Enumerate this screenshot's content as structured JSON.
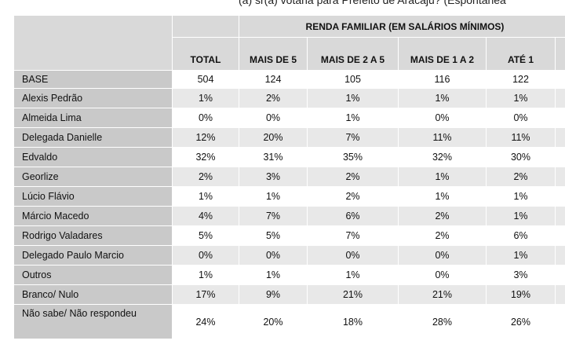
{
  "question": "(a) sr(a) votaria para Prefeito de Aracaju? (Espontânea",
  "table": {
    "group_header": "RENDA FAMILIAR (EM SALÁRIOS MÍNIMOS)",
    "columns": [
      "TOTAL",
      "MAIS DE 5",
      "MAIS DE 2 A 5",
      "MAIS DE 1 A 2",
      "ATÉ 1"
    ],
    "rows": [
      [
        "BASE",
        "504",
        "124",
        "105",
        "116",
        "122"
      ],
      [
        "Alexis Pedrão",
        "1%",
        "2%",
        "1%",
        "1%",
        "1%"
      ],
      [
        "Almeida Lima",
        "0%",
        "0%",
        "1%",
        "0%",
        "0%"
      ],
      [
        "Delegada Danielle",
        "12%",
        "20%",
        "7%",
        "11%",
        "11%"
      ],
      [
        "Edvaldo",
        "32%",
        "31%",
        "35%",
        "32%",
        "30%"
      ],
      [
        "Georlize",
        "2%",
        "3%",
        "2%",
        "1%",
        "2%"
      ],
      [
        "Lúcio Flávio",
        "1%",
        "1%",
        "2%",
        "1%",
        "1%"
      ],
      [
        "Márcio Macedo",
        "4%",
        "7%",
        "6%",
        "2%",
        "1%"
      ],
      [
        "Rodrigo Valadares",
        "5%",
        "5%",
        "7%",
        "2%",
        "6%"
      ],
      [
        "Delegado Paulo Marcio",
        "0%",
        "0%",
        "0%",
        "0%",
        "1%"
      ],
      [
        "Outros",
        "1%",
        "1%",
        "1%",
        "0%",
        "3%"
      ],
      [
        "Branco/ Nulo",
        "17%",
        "9%",
        "21%",
        "21%",
        "19%"
      ],
      [
        "Não sabe/ Não respondeu",
        "24%",
        "20%",
        "18%",
        "28%",
        "26%"
      ]
    ]
  }
}
